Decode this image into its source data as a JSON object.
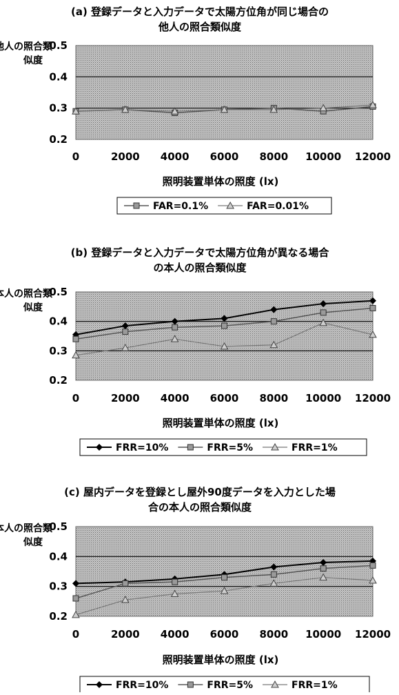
{
  "chart_data": [
    {
      "type": "line",
      "title_lines": [
        "(a) 登録データと入力データで太陽方位角が同じ場合の",
        "他人の照合類似度"
      ],
      "ylabel_lines": [
        "他人の照合類",
        "似度"
      ],
      "xlabel": "照明装置単体の照度 (lx)",
      "x": [
        0,
        2000,
        4000,
        6000,
        8000,
        10000,
        12000
      ],
      "x_ticks": [
        "0",
        "2000",
        "4000",
        "6000",
        "8000",
        "10000",
        "12000"
      ],
      "y_ticks": [
        "0.2",
        "0.3",
        "0.4",
        "0.5"
      ],
      "ylim": [
        0.2,
        0.5
      ],
      "grid": true,
      "legend_position": "bottom",
      "series": [
        {
          "name": "FAR=0.1%",
          "marker": "square",
          "values": [
            0.29,
            0.295,
            0.285,
            0.295,
            0.3,
            0.29,
            0.305
          ]
        },
        {
          "name": "FAR=0.01%",
          "marker": "triangle",
          "values": [
            0.29,
            0.295,
            0.29,
            0.295,
            0.295,
            0.3,
            0.31
          ]
        }
      ]
    },
    {
      "type": "line",
      "title_lines": [
        "(b) 登録データと入力データで太陽方位角が異なる場合",
        "の本人の照合類似度"
      ],
      "ylabel_lines": [
        "本人の照合類",
        "似度"
      ],
      "xlabel": "照明装置単体の照度 (lx)",
      "x": [
        0,
        2000,
        4000,
        6000,
        8000,
        10000,
        12000
      ],
      "x_ticks": [
        "0",
        "2000",
        "4000",
        "6000",
        "8000",
        "10000",
        "12000"
      ],
      "y_ticks": [
        "0.2",
        "0.3",
        "0.4",
        "0.5"
      ],
      "ylim": [
        0.2,
        0.5
      ],
      "grid": true,
      "legend_position": "bottom",
      "series": [
        {
          "name": "FRR=10%",
          "marker": "diamond",
          "values": [
            0.355,
            0.385,
            0.4,
            0.41,
            0.44,
            0.46,
            0.47
          ]
        },
        {
          "name": "FRR=5%",
          "marker": "square",
          "values": [
            0.34,
            0.365,
            0.38,
            0.385,
            0.4,
            0.43,
            0.445
          ]
        },
        {
          "name": "FRR=1%",
          "marker": "triangle",
          "values": [
            0.285,
            0.31,
            0.34,
            0.315,
            0.32,
            0.395,
            0.355
          ]
        }
      ]
    },
    {
      "type": "line",
      "title_lines": [
        "(c) 屋内データを登録とし屋外90度データを入力とした場",
        "合の本人の照合類似度"
      ],
      "ylabel_lines": [
        "本人の照合類",
        "似度"
      ],
      "xlabel": "照明装置単体の照度 (lx)",
      "x": [
        0,
        2000,
        4000,
        6000,
        8000,
        10000,
        12000
      ],
      "x_ticks": [
        "0",
        "2000",
        "4000",
        "6000",
        "8000",
        "10000",
        "12000"
      ],
      "y_ticks": [
        "0.2",
        "0.3",
        "0.4",
        "0.5"
      ],
      "ylim": [
        0.2,
        0.5
      ],
      "grid": true,
      "legend_position": "bottom",
      "series": [
        {
          "name": "FRR=10%",
          "marker": "diamond",
          "values": [
            0.31,
            0.315,
            0.325,
            0.34,
            0.365,
            0.38,
            0.385
          ]
        },
        {
          "name": "FRR=5%",
          "marker": "square",
          "values": [
            0.26,
            0.31,
            0.315,
            0.33,
            0.34,
            0.36,
            0.37
          ]
        },
        {
          "name": "FRR=1%",
          "marker": "triangle",
          "values": [
            0.205,
            0.255,
            0.275,
            0.285,
            0.31,
            0.33,
            0.32
          ]
        }
      ]
    }
  ]
}
